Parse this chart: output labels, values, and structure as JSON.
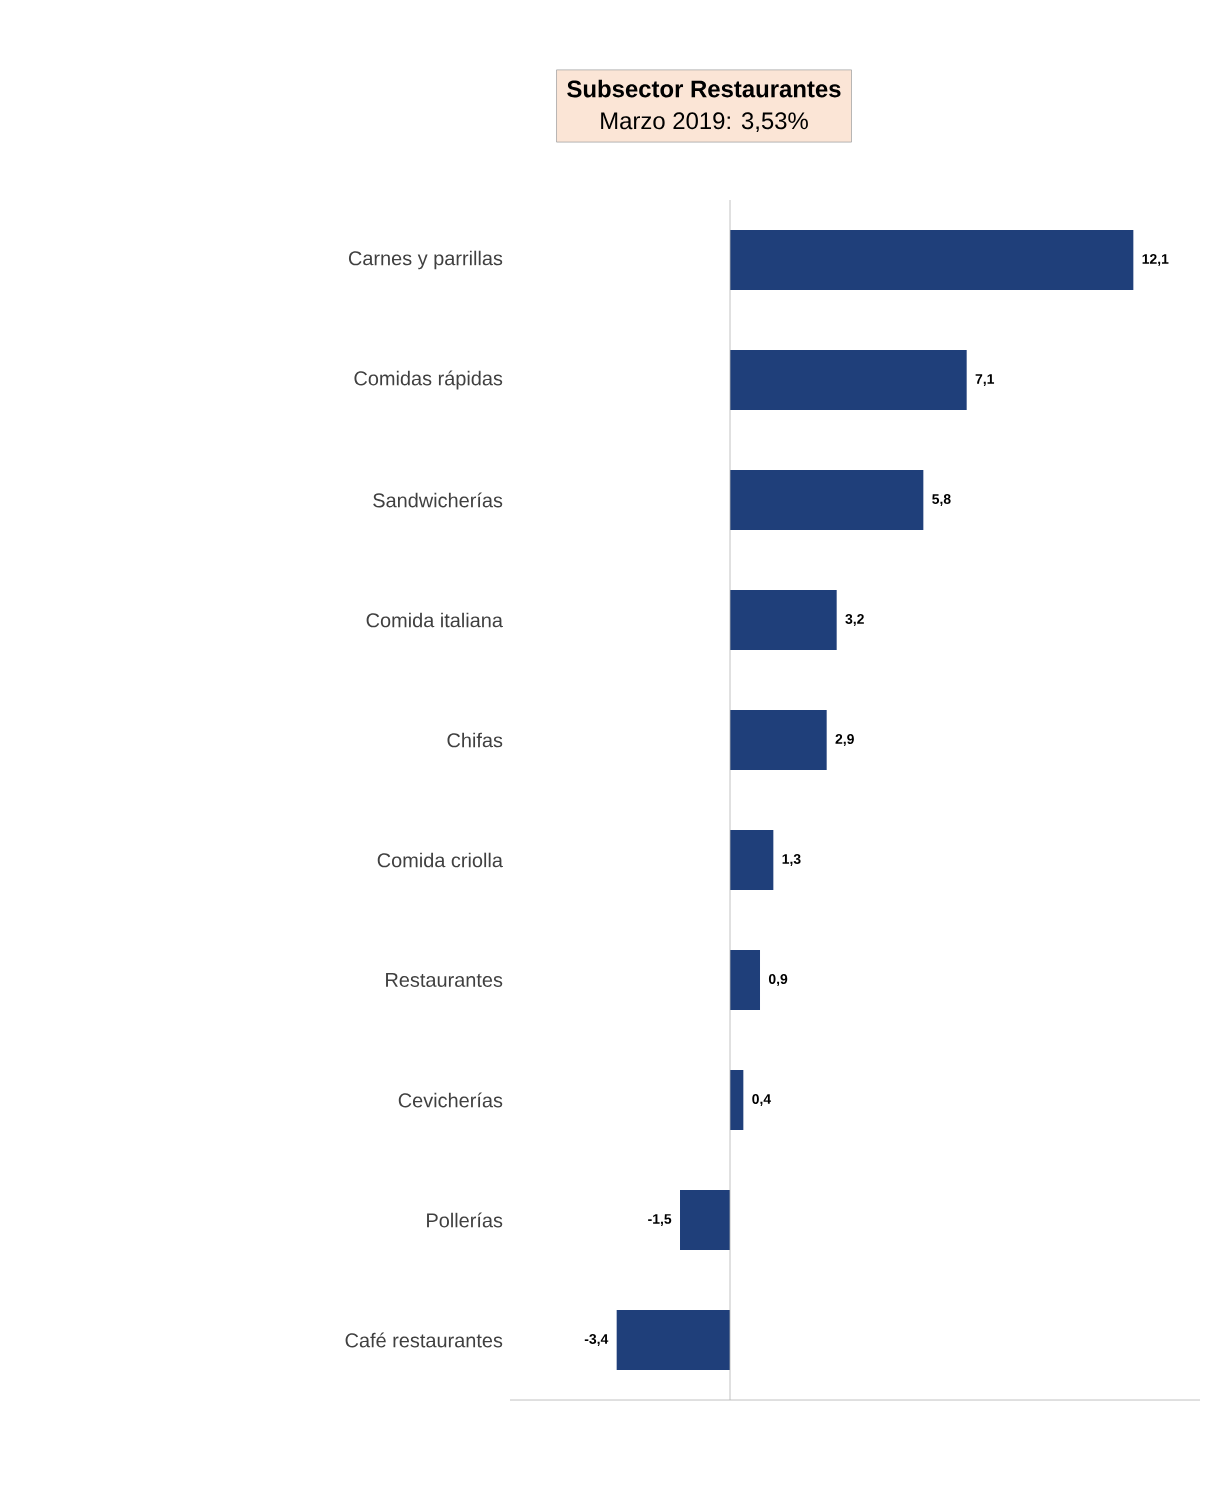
{
  "chart_data": {
    "type": "bar",
    "orientation": "horizontal",
    "title": "Subsector Restaurantes",
    "subtitle": "Marzo 2019: 3,53%",
    "categories": [
      "Carnes y parrillas",
      "Comidas rápidas",
      "Sandwicherías",
      "Comida italiana",
      "Chifas",
      "Comida criolla",
      "Restaurantes",
      "Cevicherías",
      "Pollerías",
      "Café restaurantes"
    ],
    "values": [
      12.1,
      7.1,
      5.8,
      3.2,
      2.9,
      1.3,
      0.9,
      0.4,
      -1.5,
      -3.4
    ],
    "value_labels": [
      "12,1",
      "7,1",
      "5,8",
      "3,2",
      "2,9",
      "1,3",
      "0,9",
      "0,4",
      "-1,5",
      "-3,4"
    ],
    "color": "#1f3f7a",
    "xlim": [
      -6.6,
      14.1
    ],
    "tick_labels": "y"
  }
}
